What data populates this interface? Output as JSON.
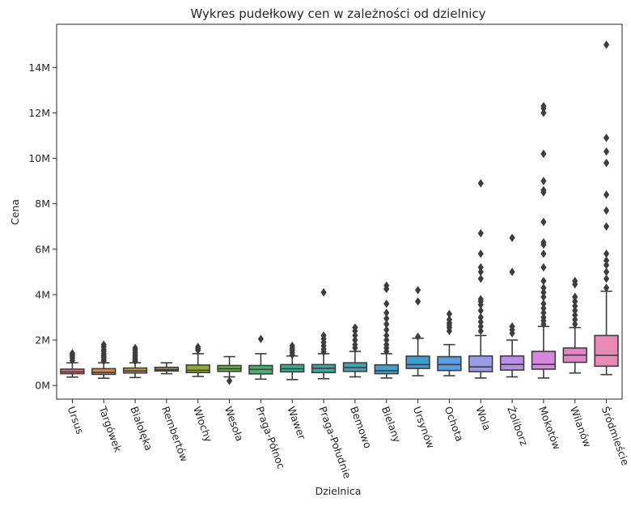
{
  "chart_data": {
    "type": "box",
    "title": "Wykres pudełkowy cen w zależności od dzielnicy",
    "xlabel": "Dzielnica",
    "ylabel": "Cena",
    "ylim": [
      -600000,
      15900000
    ],
    "y_ticks": [
      {
        "value": 0,
        "label": "0M"
      },
      {
        "value": 2000000,
        "label": "2M"
      },
      {
        "value": 4000000,
        "label": "4M"
      },
      {
        "value": 6000000,
        "label": "6M"
      },
      {
        "value": 8000000,
        "label": "8M"
      },
      {
        "value": 10000000,
        "label": "10M"
      },
      {
        "value": 12000000,
        "label": "12M"
      },
      {
        "value": 14000000,
        "label": "14M"
      }
    ],
    "grid": false,
    "categories": [
      "Ursus",
      "Targówek",
      "Białołęka",
      "Rembertów",
      "Włochy",
      "Wesoła",
      "Praga-Północ",
      "Wawer",
      "Praga-Południe",
      "Bemowo",
      "Bielany",
      "Ursynów",
      "Ochota",
      "Wola",
      "Żoliborz",
      "Mokotów",
      "Wilanów",
      "Śródmieście"
    ],
    "boxes": [
      {
        "color": "#e8767a",
        "whislo": 370000,
        "q1": 520000,
        "med": 600000,
        "q3": 720000,
        "whishi": 1000000,
        "fliers": [
          1100000,
          1200000,
          1280000,
          1350000,
          1420000
        ]
      },
      {
        "color": "#d98a52",
        "whislo": 320000,
        "q1": 490000,
        "med": 580000,
        "q3": 740000,
        "whishi": 1000000,
        "fliers": [
          1080000,
          1150000,
          1250000,
          1320000,
          1400000,
          1500000,
          1580000,
          1700000,
          1800000
        ]
      },
      {
        "color": "#c29a3d",
        "whislo": 350000,
        "q1": 550000,
        "med": 640000,
        "q3": 770000,
        "whishi": 1000000,
        "fliers": [
          1070000,
          1120000,
          1200000,
          1280000,
          1350000,
          1450000,
          1550000,
          1650000
        ]
      },
      {
        "color": "#aaa13a",
        "whislo": 520000,
        "q1": 640000,
        "med": 700000,
        "q3": 800000,
        "whishi": 1000000,
        "fliers": []
      },
      {
        "color": "#8fa93a",
        "whislo": 400000,
        "q1": 570000,
        "med": 670000,
        "q3": 900000,
        "whishi": 1400000,
        "fliers": [
          1550000,
          1620000,
          1700000
        ]
      },
      {
        "color": "#67b045",
        "whislo": 380000,
        "q1": 620000,
        "med": 740000,
        "q3": 880000,
        "whishi": 1270000,
        "fliers": [
          200000
        ]
      },
      {
        "color": "#46b16e",
        "whislo": 280000,
        "q1": 510000,
        "med": 710000,
        "q3": 880000,
        "whishi": 1400000,
        "fliers": [
          2050000
        ]
      },
      {
        "color": "#3cae90",
        "whislo": 260000,
        "q1": 600000,
        "med": 740000,
        "q3": 920000,
        "whishi": 1300000,
        "fliers": [
          1350000,
          1450000,
          1550000,
          1650000,
          1750000
        ]
      },
      {
        "color": "#3ba9a2",
        "whislo": 300000,
        "q1": 570000,
        "med": 760000,
        "q3": 920000,
        "whishi": 1400000,
        "fliers": [
          1480000,
          1600000,
          1750000,
          1900000,
          2050000,
          2200000,
          4100000
        ]
      },
      {
        "color": "#3ea5b3",
        "whislo": 380000,
        "q1": 620000,
        "med": 790000,
        "q3": 1000000,
        "whishi": 1500000,
        "fliers": [
          1650000,
          1800000,
          2000000,
          2200000,
          2400000,
          2550000
        ]
      },
      {
        "color": "#42a1c6",
        "whislo": 330000,
        "q1": 520000,
        "med": 650000,
        "q3": 910000,
        "whishi": 1400000,
        "fliers": [
          1500000,
          1650000,
          1800000,
          2000000,
          2200000,
          2450000,
          2700000,
          2950000,
          3200000,
          3600000,
          4250000,
          4400000
        ]
      },
      {
        "color": "#3b9fd2",
        "whislo": 430000,
        "q1": 750000,
        "med": 920000,
        "q3": 1290000,
        "whishi": 2080000,
        "fliers": [
          2150000,
          3700000,
          4200000
        ]
      },
      {
        "color": "#5a9ee0",
        "whislo": 430000,
        "q1": 660000,
        "med": 920000,
        "q3": 1270000,
        "whishi": 1800000,
        "fliers": [
          2400000,
          2550000,
          2650000,
          2750000,
          2900000,
          3150000
        ]
      },
      {
        "color": "#9a9ae8",
        "whislo": 330000,
        "q1": 610000,
        "med": 820000,
        "q3": 1300000,
        "whishi": 2200000,
        "fliers": [
          2400000,
          2600000,
          2800000,
          3000000,
          3300000,
          3550000,
          3700000,
          3800000,
          4700000,
          5000000,
          5200000,
          5800000,
          6700000,
          8900000
        ]
      },
      {
        "color": "#b98fe6",
        "whislo": 380000,
        "q1": 680000,
        "med": 930000,
        "q3": 1300000,
        "whishi": 2000000,
        "fliers": [
          2300000,
          2450000,
          2600000,
          5000000,
          6500000
        ]
      },
      {
        "color": "#d788de",
        "whislo": 330000,
        "q1": 720000,
        "med": 930000,
        "q3": 1500000,
        "whishi": 2600000,
        "fliers": [
          2700000,
          2850000,
          3000000,
          3200000,
          3400000,
          3600000,
          3900000,
          4100000,
          4300000,
          4600000,
          5200000,
          5800000,
          6200000,
          6300000,
          7200000,
          8500000,
          8600000,
          9000000,
          10200000,
          12000000,
          12200000,
          12300000
        ]
      },
      {
        "color": "#e286c9",
        "whislo": 550000,
        "q1": 1020000,
        "med": 1340000,
        "q3": 1650000,
        "whishi": 2550000,
        "fliers": [
          2700000,
          2900000,
          3100000,
          3300000,
          3500000,
          3700000,
          3900000,
          4450000,
          4600000
        ]
      },
      {
        "color": "#e98ab4",
        "whislo": 480000,
        "q1": 850000,
        "med": 1330000,
        "q3": 2200000,
        "whishi": 4150000,
        "fliers": [
          4300000,
          4700000,
          5000000,
          5300000,
          5500000,
          5800000,
          7000000,
          7700000,
          8400000,
          9800000,
          10300000,
          10900000,
          15000000
        ]
      }
    ]
  }
}
